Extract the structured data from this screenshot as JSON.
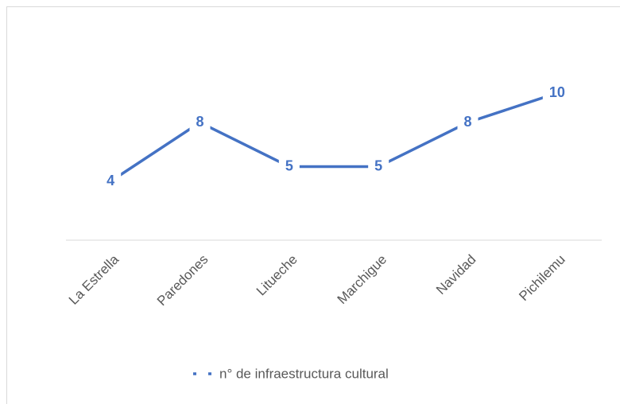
{
  "chart_data": {
    "type": "line",
    "categories": [
      "La Estrella",
      "Paredones",
      "Litueche",
      "Marchigue",
      "Navidad",
      "Pichilemu"
    ],
    "series": [
      {
        "name": "n° de infraestructura cultural",
        "color": "#4472c4",
        "values": [
          4,
          8,
          5,
          5,
          8,
          10
        ]
      }
    ],
    "ylim": [
      0,
      12
    ],
    "legend": "bottom"
  }
}
